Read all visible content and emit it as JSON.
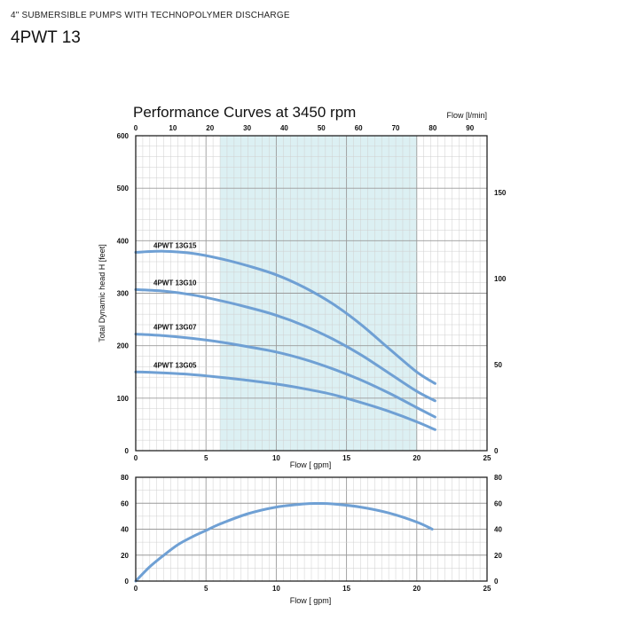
{
  "header": {
    "subtitle": "4\" SUBMERSIBLE PUMPS WITH TECHNOPOLYMER DISCHARGE",
    "model": "4PWT 13"
  },
  "colors": {
    "curve": "#6fa0d4",
    "highlight": "#dcf0f3",
    "grid_minor": "#cfcfcf",
    "grid_major": "#9a9a9a",
    "frame": "#222222"
  },
  "chart_data": [
    {
      "type": "line",
      "title": "Performance Curves at 3450 rpm",
      "xlabel": "Flow [ gpm]",
      "ylabel": "Total Dynamic head H [feet]",
      "xlim": [
        0,
        25
      ],
      "ylim": [
        0,
        600
      ],
      "x_ticks": [
        0,
        5,
        10,
        15,
        20,
        25
      ],
      "y_ticks": [
        0,
        100,
        200,
        300,
        400,
        500,
        600
      ],
      "top_axis": {
        "label": "Flow [l/min]",
        "lim": [
          0,
          94.6
        ],
        "ticks": [
          0,
          10,
          20,
          30,
          40,
          50,
          60,
          70,
          80,
          90
        ]
      },
      "right_axis": {
        "lim": [
          0,
          183
        ],
        "ticks": [
          0,
          50,
          100,
          150
        ]
      },
      "highlight_range_x": [
        6,
        20
      ],
      "grid": true,
      "series": [
        {
          "name": "4PWT 13G15",
          "x": [
            0,
            2,
            4,
            6,
            8,
            10,
            12,
            14,
            16,
            18,
            20,
            21.3
          ],
          "y": [
            378,
            380,
            376,
            366,
            352,
            335,
            311,
            280,
            241,
            195,
            150,
            128
          ]
        },
        {
          "name": "4PWT 13G10",
          "x": [
            0,
            2,
            4,
            6,
            8,
            10,
            12,
            14,
            16,
            18,
            20,
            21.3
          ],
          "y": [
            307,
            304,
            297,
            286,
            273,
            258,
            238,
            213,
            183,
            148,
            113,
            95
          ]
        },
        {
          "name": "4PWT 13G07",
          "x": [
            0,
            2,
            4,
            6,
            8,
            10,
            12,
            14,
            16,
            18,
            20,
            21.3
          ],
          "y": [
            222,
            219,
            214,
            207,
            198,
            188,
            174,
            156,
            135,
            110,
            82,
            64
          ]
        },
        {
          "name": "4PWT 13G05",
          "x": [
            0,
            2,
            4,
            6,
            8,
            10,
            12,
            14,
            16,
            18,
            20,
            21.3
          ],
          "y": [
            150,
            148,
            145,
            140,
            134,
            127,
            118,
            107,
            92,
            75,
            55,
            40
          ]
        }
      ]
    },
    {
      "type": "line",
      "title": "",
      "xlabel": "Flow [ gpm]",
      "ylabel": "",
      "xlim": [
        0,
        25
      ],
      "ylim": [
        0,
        80
      ],
      "x_ticks": [
        0,
        5,
        10,
        15,
        20,
        25
      ],
      "y_ticks": [
        0,
        20,
        40,
        60,
        80
      ],
      "right_ticks": [
        0,
        20,
        40,
        60,
        80
      ],
      "grid": true,
      "series": [
        {
          "x": [
            0,
            1,
            2,
            3,
            4,
            5,
            6,
            8,
            10,
            12,
            13,
            14,
            16,
            18,
            20,
            21.1
          ],
          "y": [
            0,
            11,
            20,
            28,
            34,
            39,
            44,
            52,
            57,
            59.5,
            59.8,
            59.5,
            57,
            52.5,
            45.5,
            40
          ]
        }
      ]
    }
  ]
}
